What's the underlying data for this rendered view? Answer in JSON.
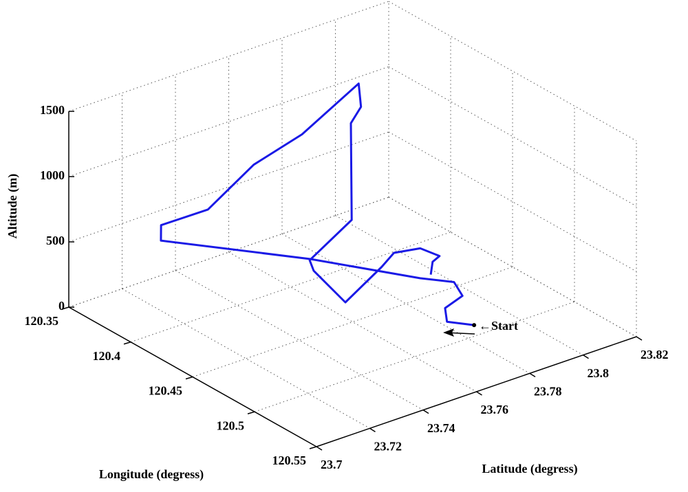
{
  "chart_data": {
    "type": "line3d",
    "xlabel": "Longitude (degress)",
    "ylabel": "Latitude (degress)",
    "zlabel": "Altitude (m)",
    "annotation": "←Start",
    "xlim": [
      120.35,
      120.55
    ],
    "xticks": [
      120.35,
      120.4,
      120.45,
      120.5,
      120.55
    ],
    "ylim": [
      23.7,
      23.82
    ],
    "yticks": [
      23.7,
      23.72,
      23.74,
      23.76,
      23.78,
      23.8,
      23.82
    ],
    "zlim": [
      0,
      1500
    ],
    "zticks": [
      0,
      500,
      1000,
      1500
    ],
    "grid": true,
    "series": [
      {
        "color": "#1a1ae6",
        "x": [
          120.49,
          120.481,
          120.473,
          120.472,
          120.463,
          120.455,
          120.416,
          120.377,
          120.375,
          120.387,
          120.396,
          120.407,
          120.414,
          120.418,
          120.412,
          120.417,
          120.411,
          120.41,
          120.442,
          120.439,
          120.436,
          120.44,
          120.447,
          120.45,
          120.455
        ],
        "y": [
          23.787,
          23.781,
          23.784,
          23.791,
          23.792,
          23.783,
          23.76,
          23.722,
          23.723,
          23.735,
          23.748,
          23.761,
          23.779,
          23.778,
          23.777,
          23.775,
          23.762,
          23.764,
          23.761,
          23.776,
          23.782,
          23.79,
          23.794,
          23.79,
          23.787
        ],
        "z": [
          0,
          20,
          60,
          100,
          150,
          200,
          300,
          500,
          600,
          700,
          1000,
          1200,
          1500,
          1350,
          1200,
          500,
          250,
          150,
          100,
          250,
          300,
          300,
          250,
          250,
          200
        ]
      }
    ]
  }
}
